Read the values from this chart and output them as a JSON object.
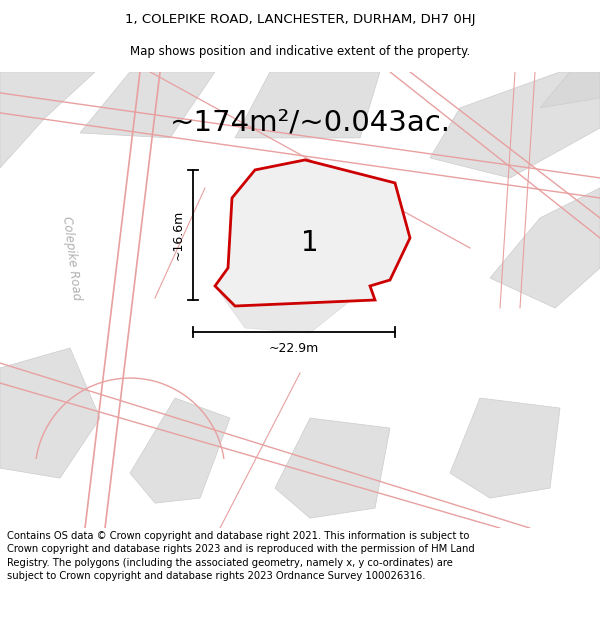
{
  "title_line1": "1, COLEPIKE ROAD, LANCHESTER, DURHAM, DH7 0HJ",
  "title_line2": "Map shows position and indicative extent of the property.",
  "area_text": "~174m²/~0.043ac.",
  "width_label": "~22.9m",
  "height_label": "~16.6m",
  "plot_number": "1",
  "road_label": "Colepike Road",
  "footer_text": "Contains OS data © Crown copyright and database right 2021. This information is subject to Crown copyright and database rights 2023 and is reproduced with the permission of HM Land Registry. The polygons (including the associated geometry, namely x, y co-ordinates) are subject to Crown copyright and database rights 2023 Ordnance Survey 100026316.",
  "bg_color": "#ffffff",
  "map_bg": "#f2f2f2",
  "block_fill": "#e0e0e0",
  "block_edge": "#cccccc",
  "road_line": "#e8a0a0",
  "property_line": "#cc0000",
  "property_fill": "#f0f0f0",
  "dim_line_color": "#000000",
  "road_label_color": "#b0b0b0",
  "title_fontsize": 9.5,
  "subtitle_fontsize": 8.5,
  "area_fontsize": 21,
  "plot_num_fontsize": 20,
  "road_label_fontsize": 8.5,
  "dim_label_fontsize": 9,
  "footer_fontsize": 7.2
}
